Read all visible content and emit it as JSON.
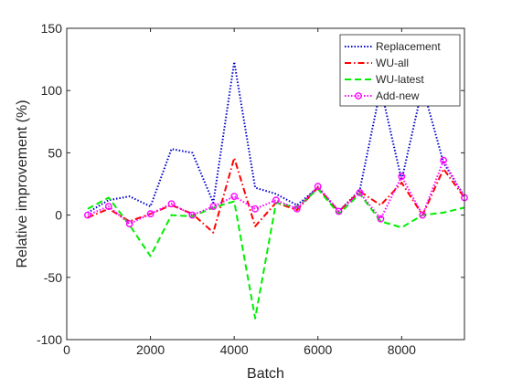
{
  "chart_data": {
    "type": "line",
    "title": "",
    "xlabel": "Batch",
    "ylabel": "Relative improvement (%)",
    "xlim": [
      0,
      9500
    ],
    "ylim": [
      -100,
      150
    ],
    "xticks": [
      0,
      2000,
      4000,
      6000,
      8000
    ],
    "yticks": [
      -100,
      -50,
      0,
      50,
      100,
      150
    ],
    "grid": false,
    "legend_position": "top-right",
    "x": [
      500,
      1000,
      1500,
      2000,
      2500,
      3000,
      3500,
      4000,
      4500,
      5000,
      5500,
      6000,
      6500,
      7000,
      7500,
      8000,
      8500,
      9000,
      9500
    ],
    "series": [
      {
        "name": "Replacement",
        "color": "#0000cc",
        "line_style": "dotted",
        "marker": "none",
        "values": [
          2,
          12,
          15,
          7,
          53,
          50,
          10,
          123,
          22,
          17,
          8,
          22,
          3,
          20,
          102,
          28,
          103,
          42,
          15
        ]
      },
      {
        "name": "WU-all",
        "color": "#ff0000",
        "line_style": "dashdot",
        "marker": "none",
        "values": [
          -2,
          5,
          -5,
          1,
          8,
          1,
          -14,
          46,
          -9,
          10,
          4,
          22,
          3,
          19,
          8,
          26,
          0,
          37,
          14
        ]
      },
      {
        "name": "WU-latest",
        "color": "#00ee00",
        "line_style": "dashed",
        "marker": "none",
        "values": [
          5,
          14,
          -8,
          -33,
          0,
          -1,
          6,
          11,
          -83,
          10,
          6,
          21,
          1,
          17,
          -5,
          -10,
          0,
          2,
          6
        ]
      },
      {
        "name": "Add-new",
        "color": "#ff00ff",
        "line_style": "dotted",
        "marker": "circle",
        "values": [
          0,
          7,
          -7,
          1,
          9,
          0,
          7,
          15,
          5,
          12,
          5,
          23,
          3,
          18,
          -3,
          31,
          0,
          44,
          14
        ]
      }
    ]
  }
}
